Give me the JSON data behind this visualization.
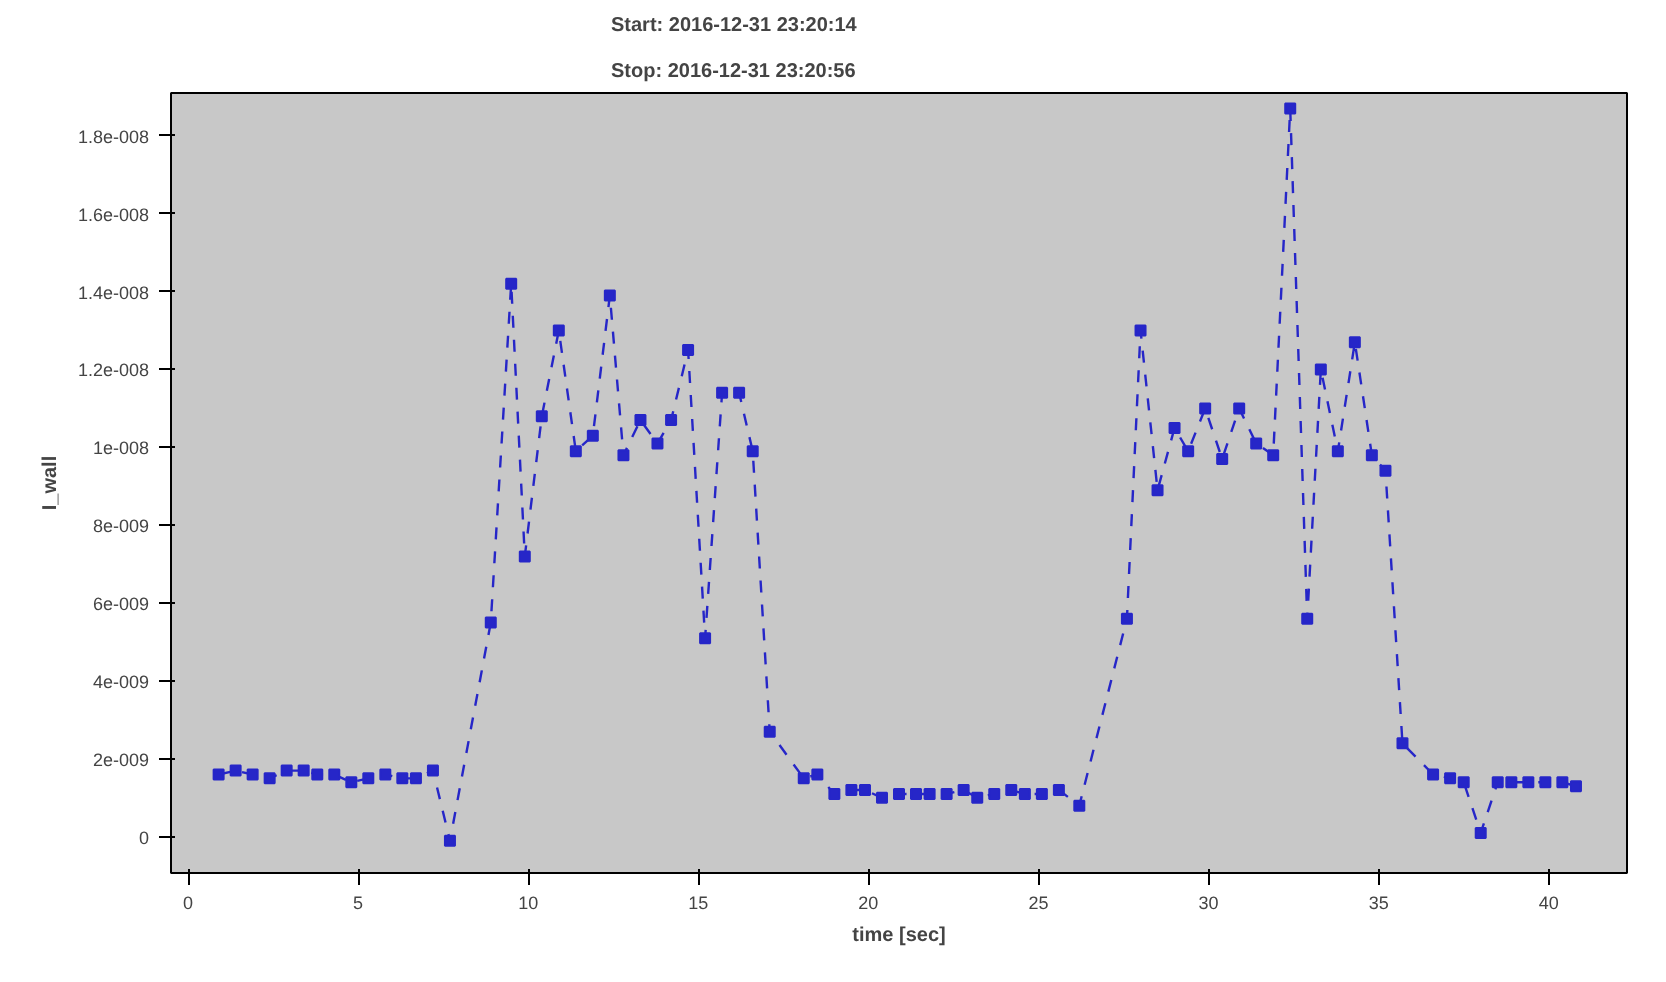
{
  "chart_data": {
    "type": "line",
    "xlabel": "time [sec]",
    "ylabel": "I_wall",
    "annotations": [
      "Start: 2016-12-31 23:20:14",
      "Stop: 2016-12-31 23:20:56"
    ],
    "x": [
      0.9,
      1.4,
      1.9,
      2.4,
      2.9,
      3.4,
      3.8,
      4.3,
      4.8,
      5.3,
      5.8,
      6.3,
      6.7,
      7.2,
      7.7,
      8.9,
      9.5,
      9.9,
      10.4,
      10.9,
      11.4,
      11.9,
      12.4,
      12.8,
      13.3,
      13.8,
      14.2,
      14.7,
      15.2,
      15.7,
      16.2,
      16.6,
      17.1,
      18.1,
      18.5,
      19.0,
      19.5,
      19.9,
      20.4,
      20.9,
      21.4,
      21.8,
      22.3,
      22.8,
      23.2,
      23.7,
      24.2,
      24.6,
      25.1,
      25.6,
      26.2,
      27.6,
      28.0,
      28.5,
      29.0,
      29.4,
      29.9,
      30.4,
      30.9,
      31.4,
      31.9,
      32.4,
      32.9,
      33.3,
      33.8,
      34.3,
      34.8,
      35.2,
      35.7,
      36.6,
      37.1,
      37.5,
      38.0,
      38.5,
      38.9,
      39.4,
      39.9,
      40.4,
      40.8
    ],
    "series": [
      {
        "color": "#2626c8",
        "values": [
          1.6e-09,
          1.7e-09,
          1.6e-09,
          1.5e-09,
          1.7e-09,
          1.7e-09,
          1.6e-09,
          1.6e-09,
          1.4e-09,
          1.5e-09,
          1.6e-09,
          1.5e-09,
          1.5e-09,
          1.7e-09,
          -1e-10,
          5.5e-09,
          1.42e-08,
          7.2e-09,
          1.08e-08,
          1.3e-08,
          9.9e-09,
          1.03e-08,
          1.39e-08,
          9.8e-09,
          1.07e-08,
          1.01e-08,
          1.07e-08,
          1.25e-08,
          5.1e-09,
          1.14e-08,
          1.14e-08,
          9.9e-09,
          2.7e-09,
          1.5e-09,
          1.6e-09,
          1.1e-09,
          1.2e-09,
          1.2e-09,
          1e-09,
          1.1e-09,
          1.1e-09,
          1.1e-09,
          1.1e-09,
          1.2e-09,
          1e-09,
          1.1e-09,
          1.2e-09,
          1.1e-09,
          1.1e-09,
          1.2e-09,
          8e-10,
          5.6e-09,
          1.3e-08,
          8.9e-09,
          1.05e-08,
          9.9e-09,
          1.1e-08,
          9.7e-09,
          1.1e-08,
          1.01e-08,
          9.8e-09,
          1.87e-08,
          5.6e-09,
          1.2e-08,
          9.9e-09,
          1.27e-08,
          9.8e-09,
          9.4e-09,
          2.4e-09,
          1.6e-09,
          1.5e-09,
          1.4e-09,
          1e-10,
          1.4e-09,
          1.4e-09,
          1.4e-09,
          1.4e-09,
          1.4e-09,
          1.3e-09
        ]
      }
    ],
    "xlim": [
      -0.5,
      42.3
    ],
    "ylim": [
      -9.3e-10,
      1.91e-08
    ],
    "xticks": [
      0,
      5,
      10,
      15,
      20,
      25,
      30,
      35,
      40
    ],
    "yticks": [
      0,
      {
        "value": 2e-09,
        "label": "2e-009"
      },
      {
        "value": 4e-09,
        "label": "4e-009"
      },
      {
        "value": 6e-09,
        "label": "6e-009"
      },
      {
        "value": 8e-09,
        "label": "8e-009"
      },
      {
        "value": 1e-08,
        "label": "1e-008"
      },
      {
        "value": 1.2e-08,
        "label": "1.2e-008"
      },
      {
        "value": 1.4e-08,
        "label": "1.4e-008"
      },
      {
        "value": 1.6e-08,
        "label": "1.6e-008"
      },
      {
        "value": 1.8e-08,
        "label": "1.8e-008"
      }
    ],
    "grid": false,
    "marker": "square",
    "line_style": "dashed"
  }
}
